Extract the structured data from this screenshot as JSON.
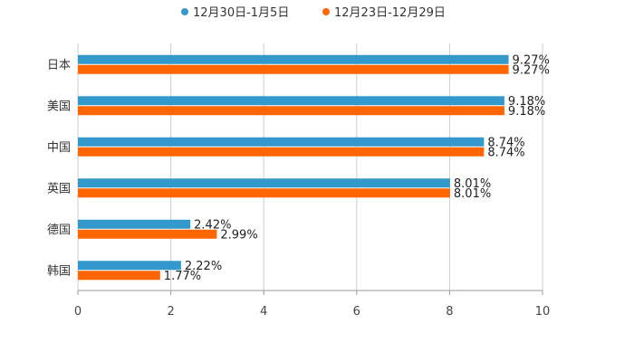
{
  "chart_data": {
    "type": "bar",
    "orientation": "horizontal",
    "categories": [
      "日本",
      "美国",
      "中国",
      "英国",
      "德国",
      "韩国"
    ],
    "series": [
      {
        "name": "12月30日-1月5日",
        "color": "#3399cc",
        "values": [
          9.27,
          9.18,
          8.74,
          8.01,
          2.42,
          2.22
        ],
        "labels": [
          "9.27%",
          "9.18%",
          "8.74%",
          "8.01%",
          "2.42%",
          "2.22%"
        ]
      },
      {
        "name": "12月23日-12月29日",
        "color": "#ff6600",
        "values": [
          9.27,
          9.18,
          8.74,
          8.01,
          2.99,
          1.77
        ],
        "labels": [
          "9.27%",
          "9.18%",
          "8.74%",
          "8.01%",
          "2.99%",
          "1.77%"
        ]
      }
    ],
    "xlim": [
      0,
      10
    ],
    "ticks": [
      0,
      2,
      4,
      6,
      8,
      10
    ],
    "tick_labels": [
      "0",
      "2",
      "4",
      "6",
      "8",
      "10"
    ],
    "grid": true,
    "legend_position": "top-center"
  }
}
